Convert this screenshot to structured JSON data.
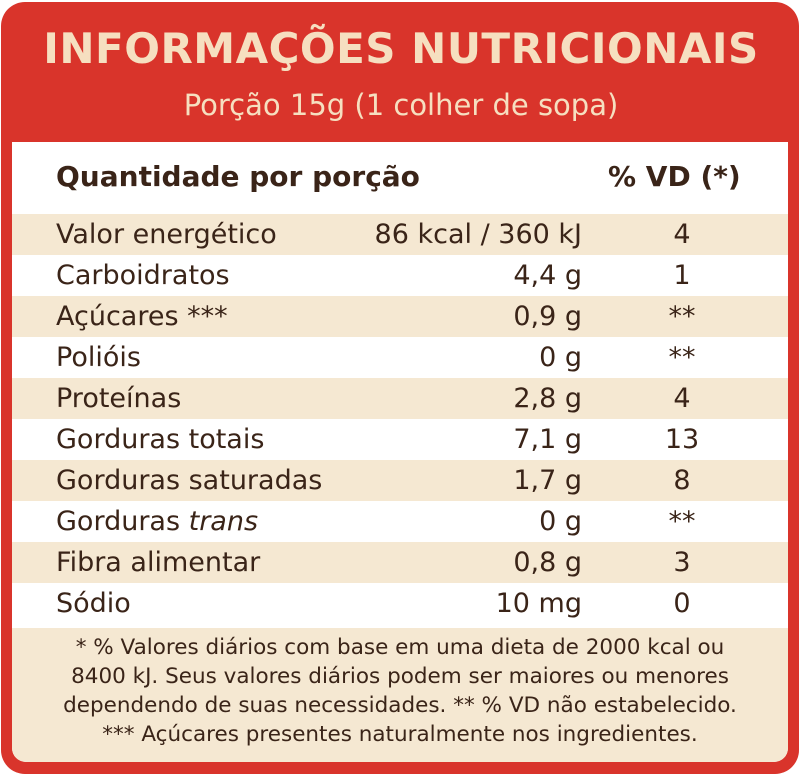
{
  "title": "INFORMAÇÕES NUTRICIONAIS",
  "subtitle": "Porção 15g (1 colher de sopa)",
  "header": {
    "quantity": "Quantidade por porção",
    "vd": "% VD (*)"
  },
  "colors": {
    "frame": "#d9342b",
    "title_text": "#f6dfc0",
    "row_shade": "#f5e8d2",
    "text": "#3a2418"
  },
  "rows": [
    {
      "name": "Valor energético",
      "name_italic": "",
      "amount": "86 kcal / 360 kJ",
      "vd": "4"
    },
    {
      "name": "Carboidratos",
      "name_italic": "",
      "amount": "4,4 g",
      "vd": "1"
    },
    {
      "name": "Açúcares ***",
      "name_italic": "",
      "amount": "0,9 g",
      "vd": "**"
    },
    {
      "name": "Polióis",
      "name_italic": "",
      "amount": "0 g",
      "vd": "**"
    },
    {
      "name": "Proteínas",
      "name_italic": "",
      "amount": "2,8 g",
      "vd": "4"
    },
    {
      "name": "Gorduras totais",
      "name_italic": "",
      "amount": "7,1 g",
      "vd": "13"
    },
    {
      "name": "Gorduras saturadas",
      "name_italic": "",
      "amount": "1,7 g",
      "vd": "8"
    },
    {
      "name": "Gorduras ",
      "name_italic": "trans",
      "amount": "0 g",
      "vd": "**"
    },
    {
      "name": "Fibra alimentar",
      "name_italic": "",
      "amount": "0,8 g",
      "vd": "3"
    },
    {
      "name": "Sódio",
      "name_italic": "",
      "amount": "10 mg",
      "vd": "0"
    }
  ],
  "footnote": [
    "* % Valores diários com base em uma dieta de 2000 kcal ou",
    "8400 kJ. Seus valores diários podem ser maiores ou menores",
    "dependendo de suas necessidades. ** % VD não estabelecido.",
    "*** Açúcares presentes naturalmente nos ingredientes."
  ]
}
